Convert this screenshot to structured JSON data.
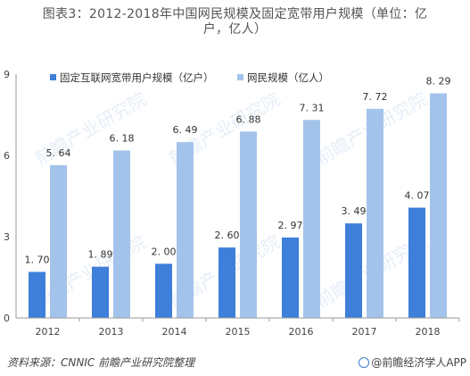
{
  "chart_data": {
    "type": "bar",
    "title_line1": "图表3：2012-2018年中国网民规模及固定宽带用户规模（单位：亿",
    "title_line2": "户，亿人）",
    "categories": [
      "2012",
      "2013",
      "2014",
      "2015",
      "2016",
      "2017",
      "2018"
    ],
    "series": [
      {
        "name": "固定互联网宽带用户规模（亿户）",
        "color": "#3d7fd9",
        "values": [
          1.7,
          1.89,
          2.0,
          2.6,
          2.97,
          3.49,
          4.07
        ],
        "labels": [
          "1. 70",
          "1. 89",
          "2. 00",
          "2. 60",
          "2. 97",
          "3. 49",
          "4. 07"
        ]
      },
      {
        "name": "网民规模（亿人）",
        "color": "#a3c3ea",
        "values": [
          5.64,
          6.18,
          6.49,
          6.88,
          7.31,
          7.72,
          8.29
        ],
        "labels": [
          "5. 64",
          "6. 18",
          "6. 49",
          "6. 88",
          "7. 31",
          "7. 72",
          "8. 29"
        ]
      }
    ],
    "yticks": [
      0,
      3,
      6,
      9
    ],
    "ylim": [
      0,
      9
    ],
    "legend_position": "top-left",
    "grid": false
  },
  "footer": {
    "source": "资料来源：CNNIC 前瞻产业研究院整理",
    "credit": "@前瞻经济学人APP"
  },
  "watermark": "前瞻产业研究院"
}
